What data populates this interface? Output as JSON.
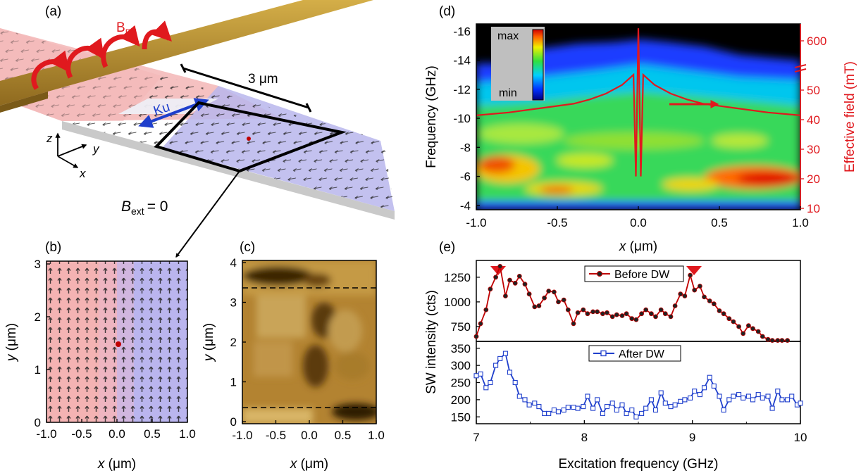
{
  "panels": {
    "a": {
      "label": "(a)",
      "brf_main": "B",
      "brf_sub": "RF",
      "distance_label": "3 μm",
      "ku_label": "Ku",
      "axis_z": "z",
      "axis_y": "y",
      "axis_x": "x",
      "bext_main": "B",
      "bext_sub": "ext",
      "bext_value": "= 0"
    },
    "b": {
      "label": "(b)",
      "xlabel": "x (μm)",
      "ylabel": "y (μm)",
      "xticks": [
        "-1.0",
        "-0.5",
        "0.0",
        "0.5",
        "1.0"
      ],
      "yticks": [
        "0",
        "1",
        "2",
        "3"
      ]
    },
    "c": {
      "label": "(c)",
      "xlabel": "x (μm)",
      "ylabel": "y (μm)",
      "xticks": [
        "-1.0",
        "-0.5",
        "0.0",
        "0.5",
        "1.0"
      ],
      "yticks": [
        "0",
        "1",
        "2",
        "3",
        "4"
      ]
    },
    "d": {
      "label": "(d)",
      "xlabel": "x (μm)",
      "ylabel": "Frequency (GHz)",
      "ylabel_right": "Effective field (mT)",
      "xticks": [
        "-1.0",
        "-0.5",
        "0.0",
        "0.5",
        "1.0"
      ],
      "yticks": [
        "-16",
        "-14",
        "-12",
        "-10",
        "-8",
        "-6",
        "-4"
      ],
      "yticks_right": [
        "600",
        "50",
        "40",
        "30",
        "20",
        "10"
      ],
      "colorbar_max": "max",
      "colorbar_min": "min"
    },
    "e": {
      "label": "(e)",
      "xlabel": "Excitation frequency (GHz)",
      "ylabel": "SW intensity (cts)",
      "xticks": [
        "7",
        "8",
        "9",
        "10"
      ],
      "yticks_top": [
        "750",
        "1000",
        "1250"
      ],
      "yticks_bottom": [
        "150",
        "200",
        "250",
        "300",
        "350"
      ],
      "legend_before": "Before DW",
      "legend_after": "After DW"
    }
  },
  "colors": {
    "before": "#c00000",
    "after": "#1f3fcc",
    "field_line": "#e0191e",
    "gold": "#b88f2e",
    "left_domain": "#f3b6b6",
    "right_domain": "#b9b6ec"
  },
  "chart_data": [
    {
      "type": "line",
      "panel": "d",
      "background": "heatmap",
      "x_range": [
        -1.0,
        1.0
      ],
      "y_range": [
        -16.5,
        -3.7
      ],
      "right_axis_label": "Effective field (mT)",
      "right_axis_ticks": [
        10,
        20,
        30,
        40,
        50,
        600
      ],
      "series": [
        {
          "x": [
            -1.0,
            -0.8,
            -0.6,
            -0.4,
            -0.3,
            -0.2,
            -0.1,
            -0.05,
            -0.03,
            -0.015,
            0.0,
            0.015,
            0.03,
            0.05,
            0.1,
            0.2,
            0.3,
            0.4,
            0.6,
            0.8,
            1.0
          ],
          "y": [
            -10.2,
            -10.4,
            -10.7,
            -11.0,
            -11.3,
            -11.7,
            -12.3,
            -12.8,
            -13.0,
            -6.0,
            -16.2,
            -6.0,
            -13.0,
            -12.8,
            -12.3,
            -11.7,
            -11.3,
            -11.0,
            -10.7,
            -10.4,
            -10.2
          ]
        }
      ]
    },
    {
      "type": "line",
      "panel": "e-top",
      "x_range": [
        7,
        10
      ],
      "y_range": [
        600,
        1420
      ],
      "series": [
        {
          "name": "Before DW",
          "x": [
            7.0,
            7.04,
            7.09,
            7.13,
            7.18,
            7.22,
            7.27,
            7.31,
            7.36,
            7.4,
            7.45,
            7.49,
            7.54,
            7.58,
            7.63,
            7.67,
            7.72,
            7.76,
            7.81,
            7.85,
            7.9,
            7.94,
            7.99,
            8.03,
            8.08,
            8.12,
            8.17,
            8.21,
            8.26,
            8.3,
            8.35,
            8.39,
            8.44,
            8.48,
            8.53,
            8.57,
            8.62,
            8.66,
            8.71,
            8.75,
            8.8,
            8.84,
            8.89,
            8.93,
            8.98,
            9.02,
            9.07,
            9.11,
            9.16,
            9.2,
            9.25,
            9.29,
            9.34,
            9.38,
            9.43,
            9.47,
            9.52,
            9.56,
            9.61,
            9.65,
            9.7,
            9.74,
            9.79,
            9.83,
            9.88
          ],
          "y": [
            650,
            780,
            920,
            1130,
            1250,
            1360,
            1060,
            1220,
            1190,
            1260,
            1180,
            1080,
            950,
            960,
            1040,
            1110,
            1100,
            1000,
            1020,
            920,
            780,
            890,
            920,
            880,
            900,
            900,
            880,
            890,
            850,
            870,
            860,
            880,
            830,
            820,
            880,
            920,
            880,
            850,
            920,
            880,
            850,
            960,
            1080,
            1060,
            1270,
            1120,
            1160,
            1050,
            1010,
            980,
            910,
            880,
            830,
            800,
            750,
            680,
            760,
            730,
            700,
            650,
            620,
            610,
            610,
            610,
            610
          ]
        }
      ]
    },
    {
      "type": "line",
      "panel": "e-bottom",
      "x_range": [
        7,
        10
      ],
      "y_range": [
        130,
        370
      ],
      "series": [
        {
          "name": "After DW",
          "x": [
            7.0,
            7.04,
            7.09,
            7.13,
            7.18,
            7.22,
            7.27,
            7.31,
            7.36,
            7.4,
            7.45,
            7.49,
            7.54,
            7.58,
            7.63,
            7.67,
            7.72,
            7.76,
            7.81,
            7.85,
            7.9,
            7.94,
            7.99,
            8.03,
            8.08,
            8.12,
            8.17,
            8.21,
            8.26,
            8.3,
            8.35,
            8.39,
            8.44,
            8.48,
            8.53,
            8.57,
            8.62,
            8.66,
            8.71,
            8.75,
            8.8,
            8.84,
            8.89,
            8.93,
            8.98,
            9.02,
            9.07,
            9.11,
            9.16,
            9.2,
            9.25,
            9.29,
            9.34,
            9.38,
            9.43,
            9.47,
            9.52,
            9.56,
            9.61,
            9.65,
            9.7,
            9.74,
            9.79,
            9.83,
            9.88,
            9.92,
            9.97,
            10.0
          ],
          "y": [
            270,
            275,
            235,
            250,
            300,
            320,
            335,
            280,
            250,
            210,
            200,
            185,
            190,
            180,
            160,
            160,
            170,
            165,
            170,
            178,
            178,
            175,
            180,
            210,
            175,
            200,
            160,
            180,
            190,
            170,
            185,
            160,
            170,
            150,
            160,
            175,
            200,
            170,
            220,
            190,
            180,
            185,
            195,
            200,
            205,
            225,
            215,
            235,
            265,
            240,
            210,
            170,
            200,
            210,
            215,
            205,
            210,
            200,
            215,
            205,
            210,
            175,
            225,
            200,
            200,
            210,
            185,
            190
          ]
        }
      ]
    }
  ]
}
